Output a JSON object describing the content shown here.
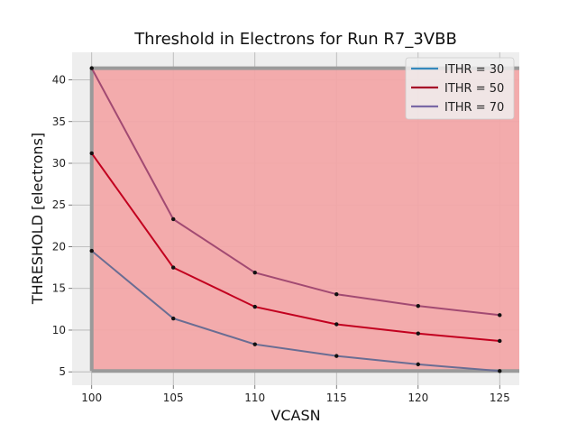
{
  "chart_data": {
    "type": "line",
    "title": "Threshold in Electrons for Run R7_3VBB",
    "xlabel": "VCASN",
    "ylabel": "THRESHOLD [electrons]",
    "x": [
      100,
      105,
      110,
      115,
      120,
      125
    ],
    "xlim": [
      98.8,
      126.2
    ],
    "ylim": [
      3.4,
      43.3
    ],
    "xticks": [
      100,
      105,
      110,
      115,
      120,
      125
    ],
    "yticks": [
      5,
      10,
      15,
      20,
      25,
      30,
      35,
      40
    ],
    "grid": true,
    "legend_position": "top-right",
    "background_color": "#eeeeee",
    "shaded_region": {
      "x": [
        100,
        125
      ],
      "y": [
        5.1,
        41.4
      ],
      "color": "#f2a7a8",
      "border_color": "#9a9a9a"
    },
    "series": [
      {
        "name": "ITHR = 30",
        "color": "#348abd",
        "values": [
          19.5,
          11.4,
          8.3,
          6.9,
          5.9,
          5.1
        ],
        "plot_color": "#6a6d93"
      },
      {
        "name": "ITHR = 50",
        "color": "#a60628",
        "values": [
          31.2,
          17.5,
          12.8,
          10.7,
          9.6,
          8.7
        ],
        "plot_color": "#c2001f"
      },
      {
        "name": "ITHR = 70",
        "color": "#7a68a6",
        "values": [
          41.4,
          23.3,
          16.9,
          14.3,
          12.9,
          11.8
        ],
        "plot_color": "#a24a72"
      }
    ]
  }
}
